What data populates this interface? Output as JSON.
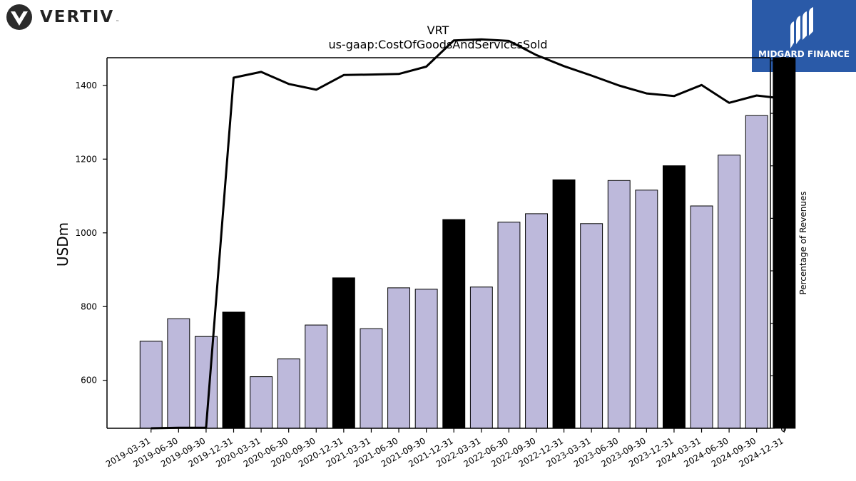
{
  "logos": {
    "left_brand": "VERTIV",
    "left_tm": "™",
    "right_brand": "MIDGARD FINANCE"
  },
  "colors": {
    "bar_regular": "#bdb9db",
    "bar_q4": "#000000",
    "line": "#000000",
    "right_logo_bg": "#2a5aa8"
  },
  "chart_data": {
    "type": "bar",
    "title": "VRT",
    "subtitle": "us-gaap:CostOfGoodsAndServicesSold",
    "ylabel": "USDm",
    "y2label": "Percentage of Revenues",
    "ylim": [
      470,
      1475
    ],
    "y2lim": [
      0,
      70.6
    ],
    "yticks": [
      600,
      800,
      1000,
      1200,
      1400
    ],
    "y2ticks": [
      0,
      10,
      20,
      30,
      40,
      50,
      60,
      70
    ],
    "grid": false,
    "categories": [
      "2019-03-31",
      "2019-06-30",
      "2019-09-30",
      "2019-12-31",
      "2020-03-31",
      "2020-06-30",
      "2020-09-30",
      "2020-12-31",
      "2021-03-31",
      "2021-06-30",
      "2021-09-30",
      "2021-12-31",
      "2022-03-31",
      "2022-06-30",
      "2022-09-30",
      "2022-12-31",
      "2023-03-31",
      "2023-06-30",
      "2023-09-30",
      "2023-12-31",
      "2024-03-31",
      "2024-06-30",
      "2024-09-30",
      "2024-12-31"
    ],
    "series": [
      {
        "type": "bar",
        "axis": "left",
        "values": [
          706,
          767,
          719,
          785,
          610,
          658,
          750,
          878,
          740,
          851,
          847,
          1036,
          853,
          1029,
          1052,
          1144,
          1025,
          1142,
          1116,
          1182,
          1073,
          1211,
          1318,
          1475
        ],
        "highlight": [
          false,
          false,
          false,
          true,
          false,
          false,
          false,
          true,
          false,
          false,
          false,
          true,
          false,
          false,
          false,
          true,
          false,
          false,
          false,
          true,
          false,
          false,
          false,
          true
        ]
      },
      {
        "type": "line",
        "axis": "right",
        "values": [
          0,
          0.1,
          0.1,
          66.8,
          67.9,
          65.6,
          64.5,
          67.3,
          67.4,
          67.5,
          68.9,
          73.9,
          74.1,
          73.8,
          71.1,
          69.0,
          67.2,
          65.3,
          63.8,
          63.3,
          65.4,
          62.0,
          63.4,
          62.8
        ]
      }
    ]
  }
}
